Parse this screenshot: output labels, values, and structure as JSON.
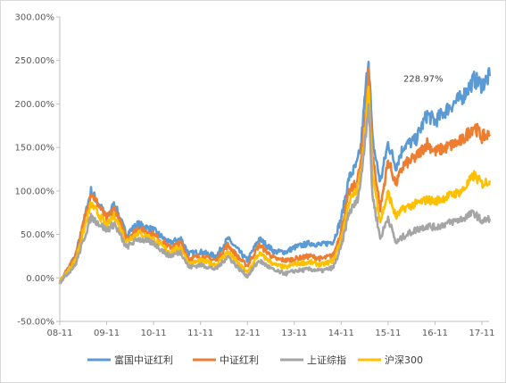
{
  "chart_data": {
    "type": "line",
    "title": "",
    "xlabel": "",
    "ylabel": "",
    "y_unit": "%",
    "ylim": [
      -50,
      300
    ],
    "y_ticks": [
      -50,
      0,
      50,
      100,
      150,
      200,
      250,
      300
    ],
    "y_tick_labels": [
      "-50.00%",
      "0.00%",
      "50.00%",
      "100.00%",
      "150.00%",
      "200.00%",
      "250.00%",
      "300.00%"
    ],
    "x_range": [
      "08-11",
      "17-11"
    ],
    "x_ticks": [
      "08-11",
      "09-11",
      "10-11",
      "11-11",
      "12-11",
      "13-11",
      "14-11",
      "15-11",
      "16-11",
      "17-11"
    ],
    "grid": false,
    "legend_position": "bottom",
    "annotation": {
      "text": "228.97%",
      "x": "16-08",
      "y": 228.97
    },
    "series": [
      {
        "name": "富国中证红利",
        "color": "#5B9BD5",
        "x": [
          "08-11",
          "09-03",
          "09-07",
          "09-11",
          "10-01",
          "10-04",
          "10-07",
          "10-11",
          "11-03",
          "11-06",
          "11-08",
          "11-11",
          "12-03",
          "12-06",
          "12-09",
          "12-11",
          "13-02",
          "13-06",
          "13-09",
          "13-11",
          "14-03",
          "14-06",
          "14-09",
          "14-11",
          "15-01",
          "15-03",
          "15-04",
          "15-06",
          "15-07",
          "15-09",
          "15-11",
          "16-01",
          "16-03",
          "16-06",
          "16-09",
          "16-11",
          "17-03",
          "17-06",
          "17-09",
          "17-11",
          "18-01"
        ],
        "values": [
          -5,
          25,
          100,
          70,
          85,
          50,
          62,
          55,
          40,
          45,
          28,
          30,
          25,
          45,
          30,
          20,
          45,
          30,
          30,
          35,
          40,
          38,
          42,
          68,
          115,
          130,
          150,
          255,
          158,
          110,
          155,
          128,
          152,
          158,
          188,
          180,
          198,
          208,
          228,
          222,
          232
        ]
      },
      {
        "name": "中证红利",
        "color": "#ED7D31",
        "x": [
          "08-11",
          "09-03",
          "09-07",
          "09-11",
          "10-01",
          "10-04",
          "10-07",
          "10-11",
          "11-03",
          "11-06",
          "11-08",
          "11-11",
          "12-03",
          "12-06",
          "12-09",
          "12-11",
          "13-02",
          "13-06",
          "13-09",
          "13-11",
          "14-03",
          "14-06",
          "14-09",
          "14-11",
          "15-01",
          "15-03",
          "15-04",
          "15-06",
          "15-07",
          "15-09",
          "15-11",
          "16-01",
          "16-03",
          "16-06",
          "16-09",
          "16-11",
          "17-03",
          "17-06",
          "17-09",
          "17-11",
          "18-01"
        ],
        "values": [
          -5,
          25,
          98,
          68,
          80,
          45,
          57,
          50,
          35,
          40,
          22,
          25,
          20,
          38,
          22,
          14,
          38,
          22,
          20,
          22,
          25,
          22,
          26,
          55,
          98,
          110,
          130,
          235,
          142,
          80,
          135,
          108,
          130,
          138,
          155,
          145,
          152,
          158,
          175,
          162,
          165
        ]
      },
      {
        "name": "上证综指",
        "color": "#A5A5A5",
        "x": [
          "08-11",
          "09-03",
          "09-07",
          "09-11",
          "10-01",
          "10-04",
          "10-07",
          "10-11",
          "11-03",
          "11-06",
          "11-08",
          "11-11",
          "12-03",
          "12-06",
          "12-09",
          "12-11",
          "13-02",
          "13-06",
          "13-09",
          "13-11",
          "14-03",
          "14-06",
          "14-09",
          "14-11",
          "15-01",
          "15-03",
          "15-04",
          "15-06",
          "15-07",
          "15-09",
          "15-11",
          "16-01",
          "16-03",
          "16-06",
          "16-09",
          "16-11",
          "17-03",
          "17-06",
          "17-09",
          "17-11",
          "18-01"
        ],
        "values": [
          -5,
          15,
          70,
          55,
          62,
          35,
          45,
          40,
          25,
          30,
          12,
          15,
          10,
          25,
          10,
          2,
          20,
          8,
          5,
          8,
          10,
          8,
          12,
          35,
          75,
          88,
          110,
          200,
          95,
          45,
          70,
          40,
          48,
          55,
          60,
          58,
          64,
          68,
          75,
          65,
          68
        ]
      },
      {
        "name": "沪深300",
        "color": "#FFC000",
        "x": [
          "08-11",
          "09-03",
          "09-07",
          "09-11",
          "10-01",
          "10-04",
          "10-07",
          "10-11",
          "11-03",
          "11-06",
          "11-08",
          "11-11",
          "12-03",
          "12-06",
          "12-09",
          "12-11",
          "13-02",
          "13-06",
          "13-09",
          "13-11",
          "14-03",
          "14-06",
          "14-09",
          "14-11",
          "15-01",
          "15-03",
          "15-04",
          "15-06",
          "15-07",
          "15-09",
          "15-11",
          "16-01",
          "16-03",
          "16-06",
          "16-09",
          "16-11",
          "17-03",
          "17-06",
          "17-09",
          "17-11",
          "18-01"
        ],
        "values": [
          -5,
          20,
          85,
          60,
          72,
          42,
          52,
          45,
          30,
          35,
          16,
          20,
          15,
          30,
          15,
          6,
          28,
          15,
          12,
          16,
          18,
          15,
          20,
          45,
          88,
          100,
          120,
          215,
          120,
          65,
          98,
          70,
          80,
          85,
          90,
          88,
          95,
          100,
          118,
          108,
          112
        ]
      }
    ]
  }
}
